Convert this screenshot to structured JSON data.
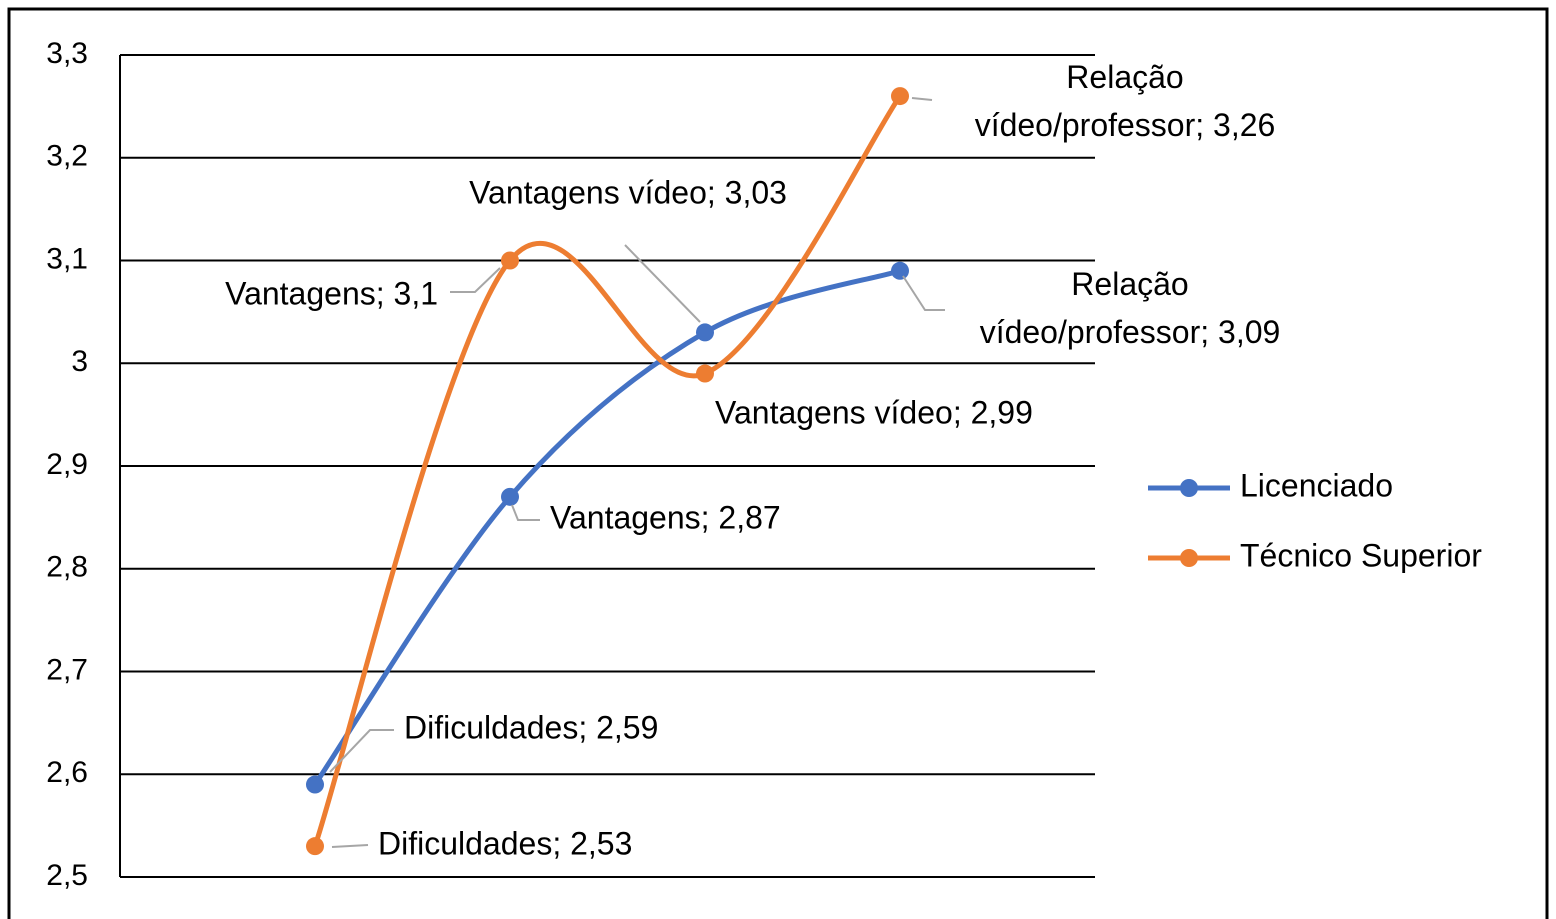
{
  "chart_data": {
    "type": "line",
    "categories": [
      "Dificuldades",
      "Vantagens",
      "Vantagens vídeo",
      "Relação vídeo/professor"
    ],
    "series": [
      {
        "name": "Licenciado",
        "color": "#4472c4",
        "values": [
          2.59,
          2.87,
          3.03,
          3.09
        ],
        "value_labels": [
          "Dificuldades; 2,59",
          "Vantagens; 2,87",
          "Vantagens vídeo; 3,03",
          "Relação\nvídeo/professor; 3,09"
        ]
      },
      {
        "name": "Técnico Superior",
        "color": "#ed7d31",
        "values": [
          2.53,
          3.1,
          2.99,
          3.26
        ],
        "value_labels": [
          "Dificuldades; 2,53",
          "Vantagens; 3,1",
          "Vantagens vídeo; 2,99",
          "Relação\nvídeo/professor; 3,26"
        ]
      }
    ],
    "ylim": [
      2.5,
      3.3
    ],
    "yticks": [
      {
        "value": 2.5,
        "label": "2,5"
      },
      {
        "value": 2.6,
        "label": "2,6"
      },
      {
        "value": 2.7,
        "label": "2,7"
      },
      {
        "value": 2.8,
        "label": "2,8"
      },
      {
        "value": 2.9,
        "label": "2,9"
      },
      3,
      {
        "value": 3.1,
        "label": "3,1"
      },
      {
        "value": 3.2,
        "label": "3,2"
      },
      {
        "value": 3.3,
        "label": "3,3"
      }
    ],
    "grid": true,
    "smooth": true,
    "legend": "right"
  }
}
